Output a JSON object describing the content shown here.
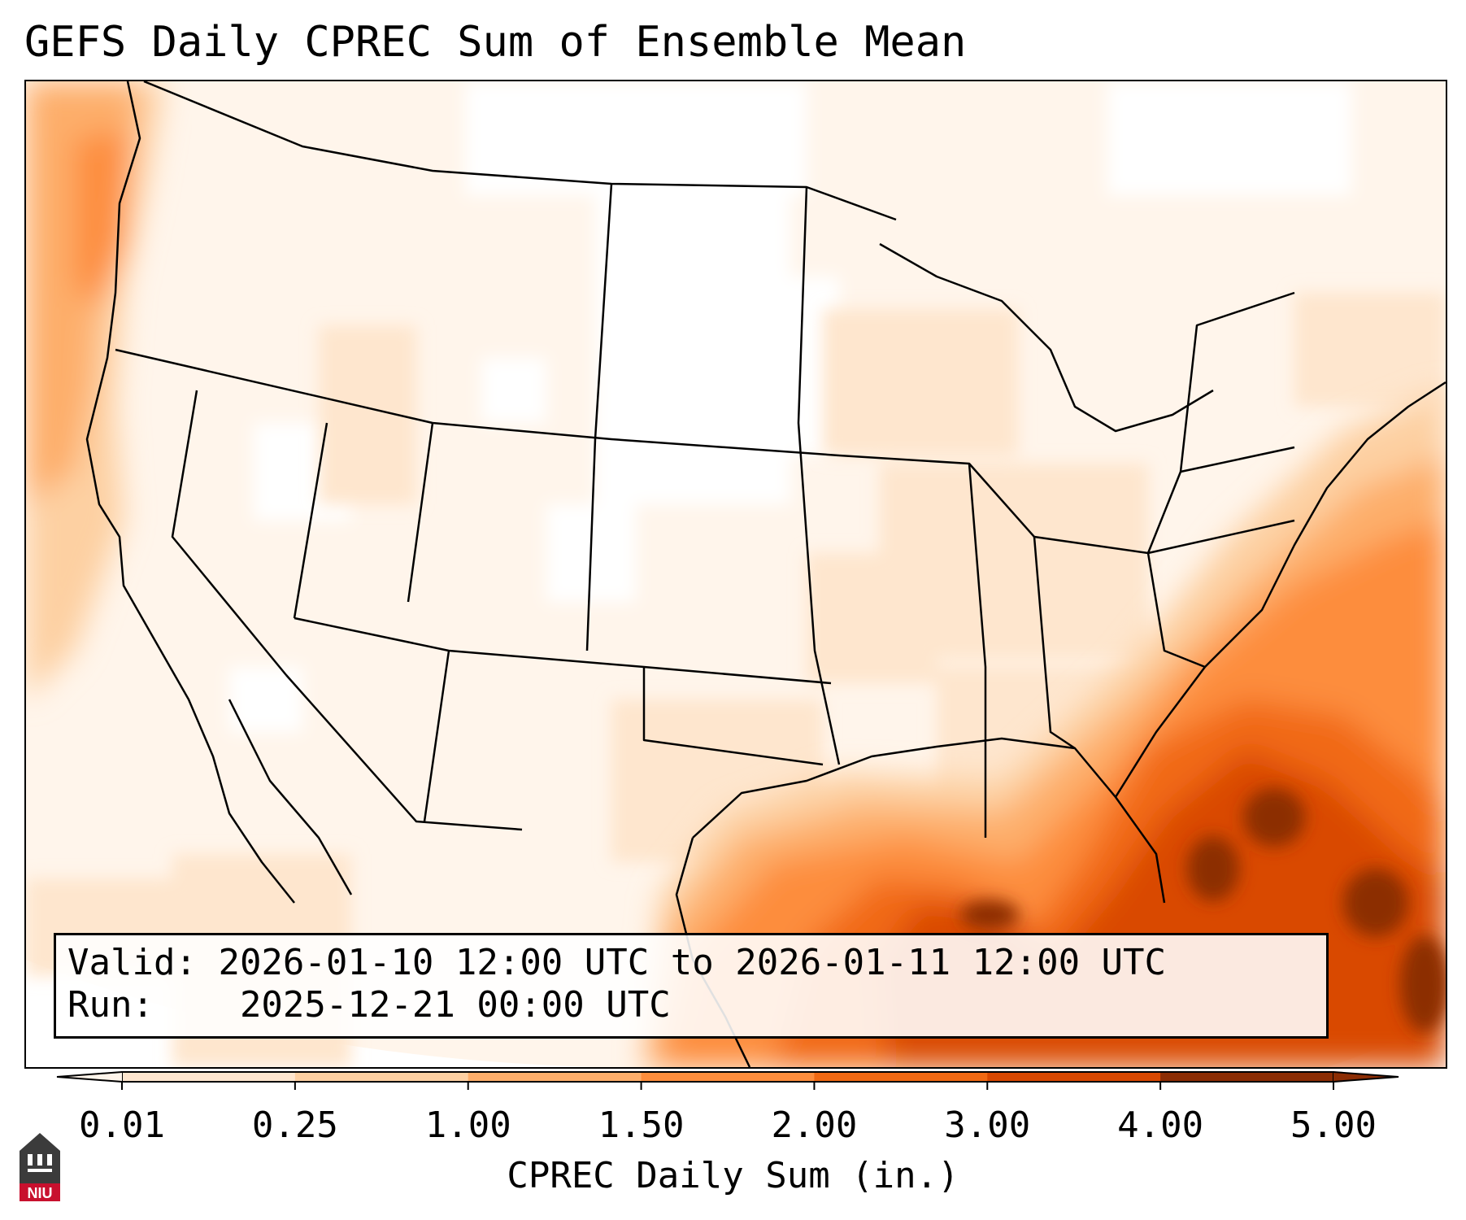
{
  "title": "GEFS Daily CPREC Sum of Ensemble Mean",
  "info": {
    "valid_label": "Valid:",
    "valid_value": "2026-01-10 12:00 UTC to 2026-01-11 12:00 UTC",
    "run_label": "Run:",
    "run_value": "2025-12-21 00:00 UTC"
  },
  "colorbar": {
    "label": "CPREC Daily Sum (in.)",
    "ticks": [
      "0.01",
      "0.25",
      "1.00",
      "1.50",
      "2.00",
      "3.00",
      "4.00",
      "5.00"
    ],
    "colors": [
      "#fff5eb",
      "#fee6ce",
      "#fdd0a2",
      "#fdae6b",
      "#fd8d3c",
      "#f16913",
      "#d94801",
      "#8c2d04"
    ]
  },
  "logo": {
    "text": "NIU",
    "color": "#c8102e"
  }
}
